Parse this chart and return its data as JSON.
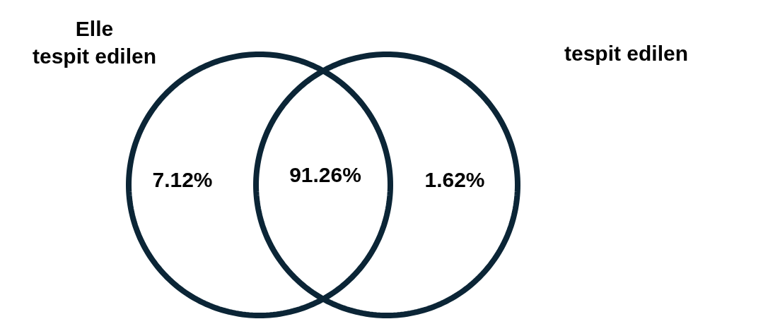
{
  "chart_data": {
    "type": "other",
    "annotations": [
      "Elle\ntespit edilen",
      "tespit edilen"
    ],
    "color": "#0b2536",
    "categories": [
      null,
      null,
      null
    ],
    "values": [
      7.12,
      91.26,
      1.62
    ],
    "value_labels": [
      "7.12%",
      "91.26%",
      "1.62%"
    ]
  }
}
